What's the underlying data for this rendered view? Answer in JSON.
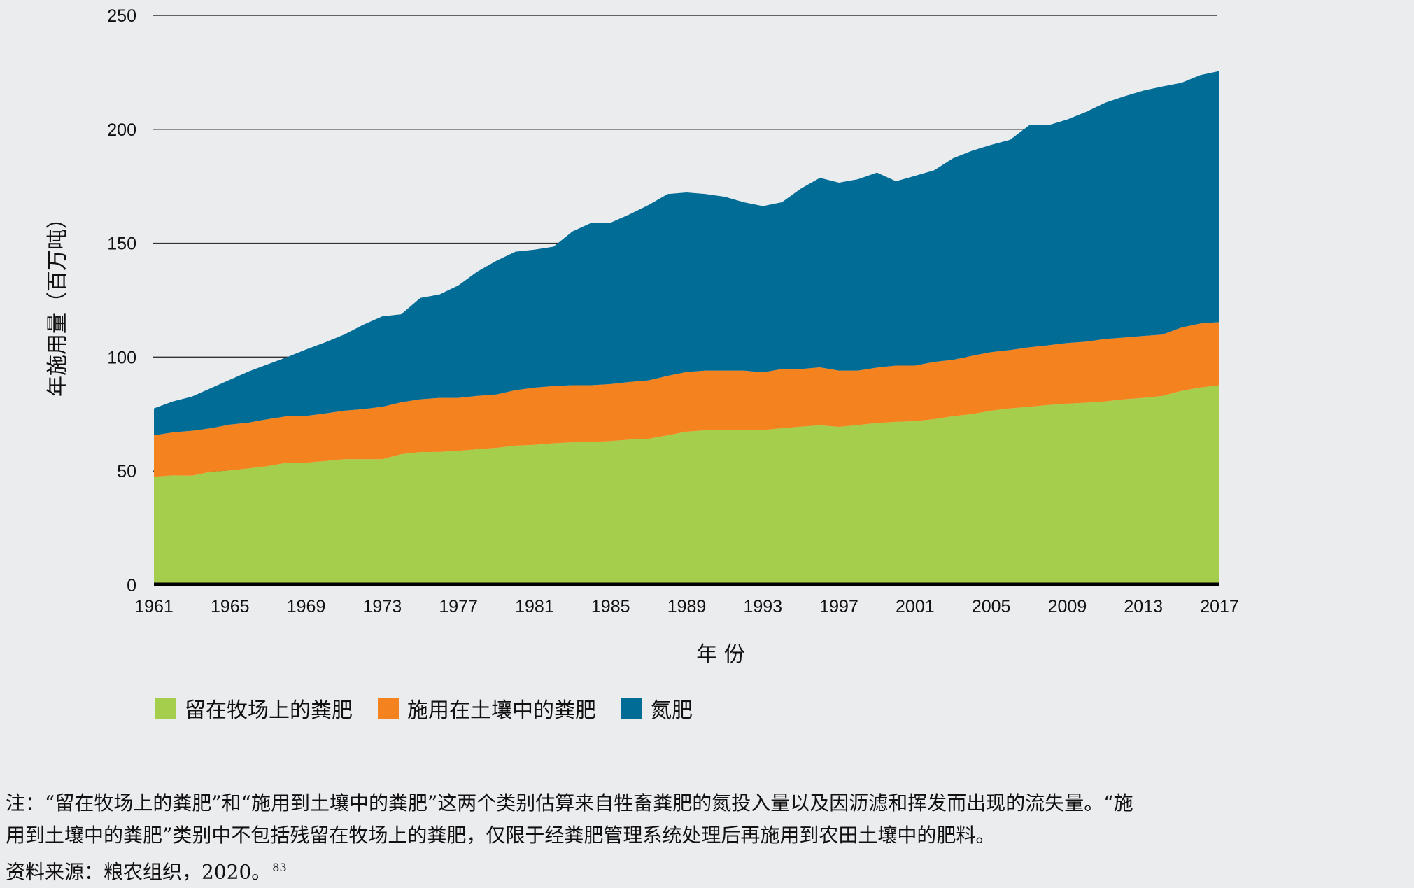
{
  "chart_data": {
    "type": "area",
    "stacked": true,
    "title": "",
    "xlabel": "年 份",
    "ylabel": "年施用量（百万吨）",
    "ylim": [
      0,
      250
    ],
    "yticks": [
      0,
      50,
      100,
      150,
      200,
      250
    ],
    "xlim": [
      1961,
      2017
    ],
    "xticks": [
      1961,
      1965,
      1969,
      1973,
      1977,
      1981,
      1985,
      1989,
      1993,
      1997,
      2001,
      2005,
      2009,
      2013,
      2017
    ],
    "grid": "horizontal",
    "legend_position": "bottom-left",
    "x": [
      1961,
      1962,
      1963,
      1964,
      1965,
      1966,
      1967,
      1968,
      1969,
      1970,
      1971,
      1972,
      1973,
      1974,
      1975,
      1976,
      1977,
      1978,
      1979,
      1980,
      1981,
      1982,
      1983,
      1984,
      1985,
      1986,
      1987,
      1988,
      1989,
      1990,
      1991,
      1992,
      1993,
      1994,
      1995,
      1996,
      1997,
      1998,
      1999,
      2000,
      2001,
      2002,
      2003,
      2004,
      2005,
      2006,
      2007,
      2008,
      2009,
      2010,
      2011,
      2012,
      2013,
      2014,
      2015,
      2016,
      2017
    ],
    "series": [
      {
        "name": "留在牧场上的粪肥",
        "color": "#a5ce4c",
        "values": [
          47.5,
          48.1,
          48.0,
          49.7,
          50.3,
          51.2,
          52.2,
          53.7,
          53.7,
          54.4,
          55.2,
          55.2,
          55.2,
          57.4,
          58.3,
          58.4,
          58.9,
          59.6,
          60.2,
          61.1,
          61.5,
          62.2,
          62.6,
          62.7,
          63.2,
          63.8,
          64.2,
          65.7,
          67.3,
          67.9,
          67.9,
          68.0,
          68.0,
          68.8,
          69.5,
          70.1,
          69.4,
          70.2,
          71.1,
          71.6,
          71.9,
          72.8,
          74.1,
          75.0,
          76.5,
          77.5,
          78.2,
          79.0,
          79.6,
          80.0,
          80.6,
          81.5,
          82.1,
          83.0,
          85.2,
          86.7,
          87.7
        ]
      },
      {
        "name": "施用在土壤中的粪肥",
        "color": "#f4821f",
        "values": [
          18.2,
          18.9,
          19.7,
          19.1,
          20.1,
          20.1,
          20.6,
          20.4,
          20.5,
          20.9,
          21.3,
          22.0,
          23.0,
          22.8,
          23.2,
          23.7,
          23.2,
          23.4,
          23.4,
          24.4,
          25.1,
          25.1,
          25.1,
          25.0,
          25.0,
          25.3,
          25.6,
          26.1,
          26.2,
          26.2,
          26.2,
          26.1,
          25.3,
          26.0,
          25.3,
          25.4,
          24.7,
          23.9,
          24.3,
          24.7,
          24.4,
          25.1,
          24.7,
          25.6,
          25.7,
          25.6,
          26.1,
          26.2,
          26.6,
          26.8,
          27.4,
          27.1,
          27.2,
          26.9,
          27.8,
          28.1,
          27.7
        ]
      },
      {
        "name": "氮肥",
        "color": "#016d97",
        "values": [
          11.8,
          13.6,
          15.0,
          17.6,
          19.7,
          22.5,
          24.1,
          25.9,
          29.2,
          31.2,
          33.4,
          37.0,
          39.7,
          38.6,
          44.5,
          45.4,
          49.4,
          54.6,
          58.7,
          60.8,
          60.6,
          61.2,
          67.5,
          71.3,
          70.8,
          73.6,
          77.0,
          79.8,
          78.8,
          77.5,
          76.3,
          73.9,
          73.0,
          73.2,
          79.2,
          83.2,
          82.5,
          84.0,
          85.6,
          80.9,
          83.3,
          84.1,
          88.5,
          90.0,
          91.0,
          92.3,
          97.5,
          96.6,
          98.1,
          100.9,
          103.7,
          105.9,
          107.7,
          108.9,
          107.4,
          109.0,
          110.2
        ]
      }
    ]
  },
  "legend": {
    "items": [
      {
        "label": "留在牧场上的粪肥",
        "color": "#a5ce4c"
      },
      {
        "label": "施用在土壤中的粪肥",
        "color": "#f4821f"
      },
      {
        "label": "氮肥",
        "color": "#016d97"
      }
    ]
  },
  "notes": {
    "note_line_1": "注：“留在牧场上的粪肥”和“施用到土壤中的粪肥”这两个类别估算来自牲畜粪肥的氮投入量以及因沥滤和挥发而出现的流失量。“施",
    "note_line_2": "用到土壤中的粪肥”类别中不包括残留在牧场上的粪肥，仅限于经粪肥管理系统处理后再施用到农田土壤中的肥料。",
    "source": "资料来源：粮农组织，2020。",
    "source_ref": "83"
  }
}
